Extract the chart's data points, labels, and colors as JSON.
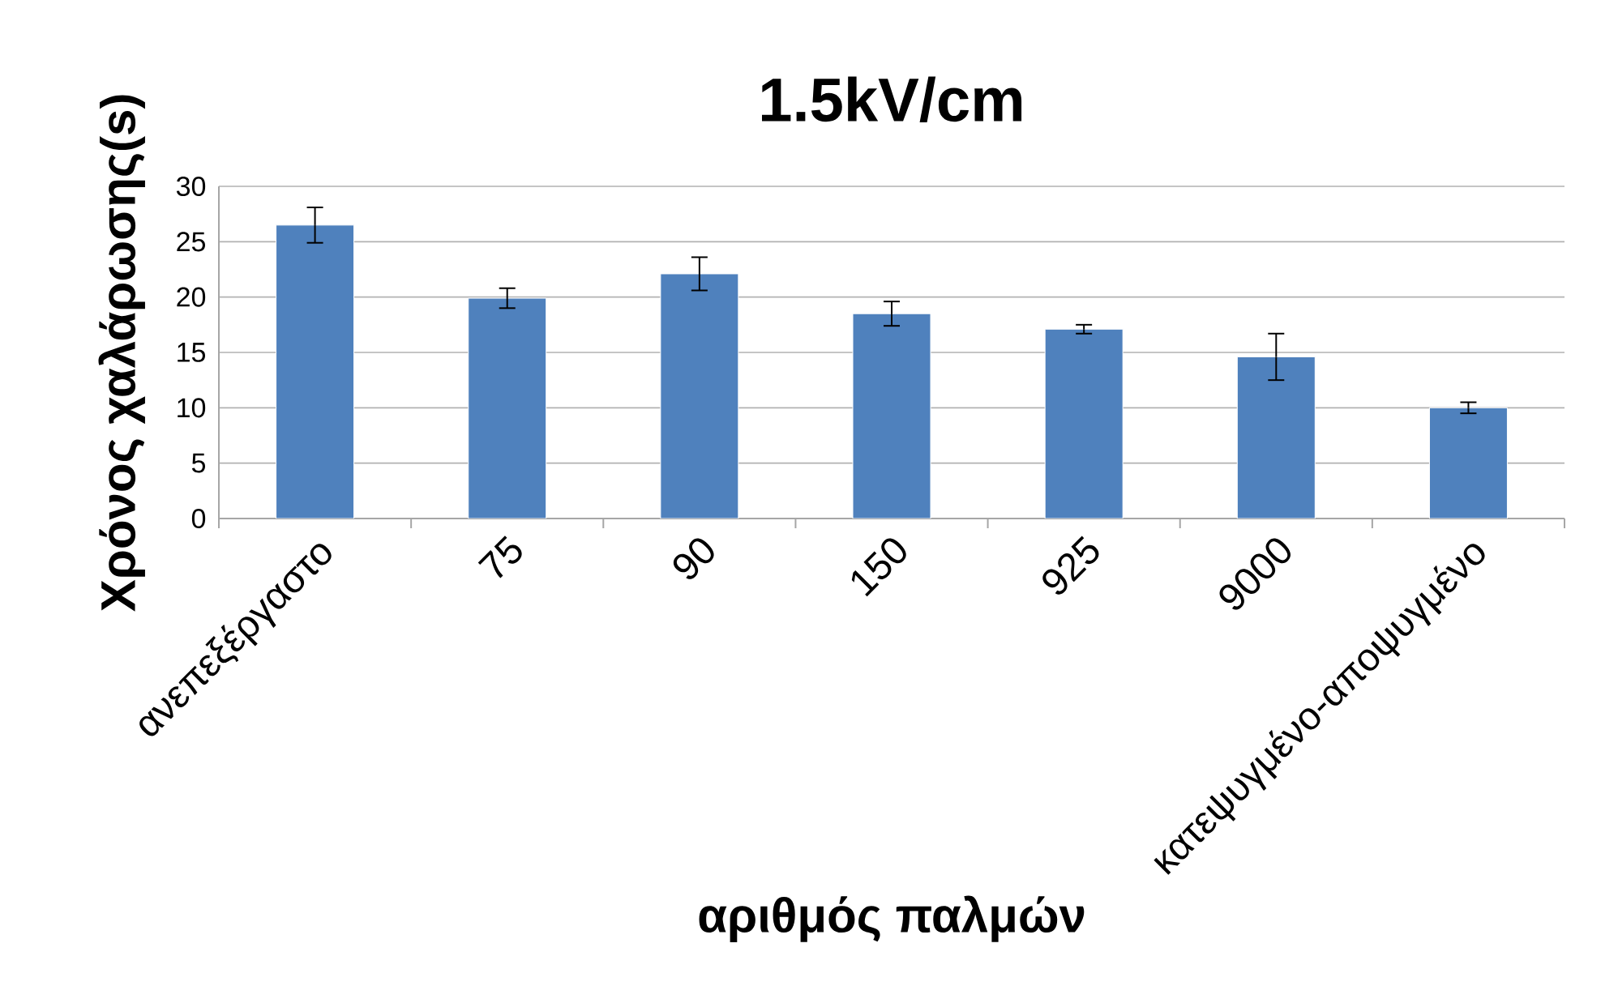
{
  "chart_data": {
    "type": "bar",
    "title": "1.5kV/cm",
    "xlabel": "αριθμός παλμών",
    "ylabel": "Χρόνος χαλάρωσης(s)",
    "categories": [
      "ανεπεξέργαστο",
      "75",
      "90",
      "150",
      "925",
      "9000",
      "κατεψυγμένο-αποψυγμένο"
    ],
    "values": [
      26.5,
      19.9,
      22.1,
      18.5,
      17.1,
      14.6,
      10.0
    ],
    "errors": [
      1.6,
      0.9,
      1.5,
      1.1,
      0.4,
      2.1,
      0.5
    ],
    "color": "#4f81bd",
    "ylim": [
      0,
      30
    ],
    "yticks": [
      0,
      5,
      10,
      15,
      20,
      25,
      30
    ],
    "grid": "y"
  }
}
